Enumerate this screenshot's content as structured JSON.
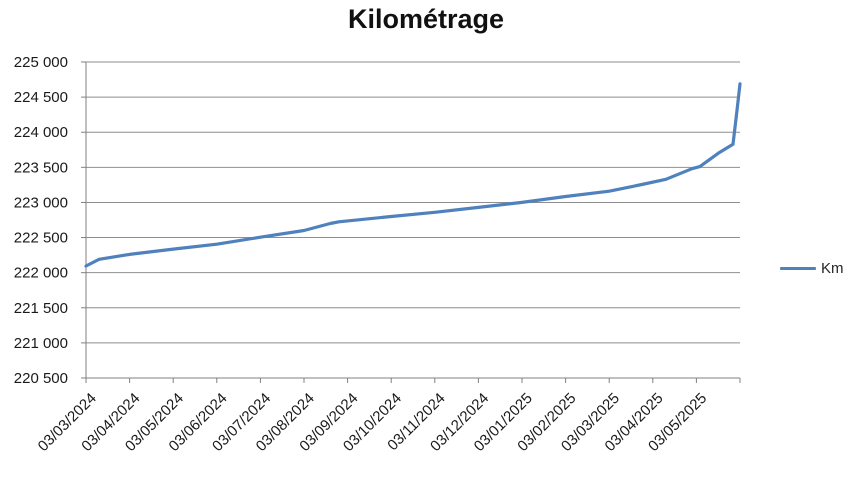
{
  "title": "Kilométrage",
  "legend": {
    "label": "Km",
    "line_color": "#4F81BD"
  },
  "colors": {
    "series_line": "#4F81BD",
    "gridline": "#8E8E8E",
    "axis_line": "#808080",
    "tick_text": "#1A1A1A",
    "background": "#FFFFFF"
  },
  "chart_data": {
    "type": "line",
    "title": "Kilométrage",
    "grid": true,
    "legend_position": "right",
    "y_axis": {
      "min": 220500,
      "max": 225000,
      "step": 500,
      "tick_labels": [
        "225 000",
        "224 500",
        "224 000",
        "223 500",
        "223 000",
        "222 500",
        "222 000",
        "221 500",
        "221 000",
        "220 500"
      ]
    },
    "x_axis": {
      "units_span": 15,
      "tick_label_rotation_deg": -45,
      "tick_labels": [
        "03/03/2024",
        "03/04/2024",
        "03/05/2024",
        "03/06/2024",
        "03/07/2024",
        "03/08/2024",
        "03/09/2024",
        "03/10/2024",
        "03/11/2024",
        "03/12/2024",
        "03/01/2025",
        "03/02/2025",
        "03/03/2025",
        "03/04/2025",
        "03/05/2025"
      ]
    },
    "categories": [
      "03/03/2024",
      "03/04/2024",
      "03/05/2024",
      "03/06/2024",
      "03/07/2024",
      "03/08/2024",
      "03/09/2024",
      "03/10/2024",
      "03/11/2024",
      "03/12/2024",
      "03/01/2025",
      "03/02/2025",
      "03/03/2025",
      "03/04/2025",
      "03/05/2025"
    ],
    "series": [
      {
        "name": "Km",
        "color": "#4F81BD",
        "values_at_labels": [
          222095,
          222260,
          222335,
          222405,
          222505,
          222600,
          222745,
          222800,
          222860,
          222930,
          223000,
          223085,
          223160,
          223290,
          223490
        ],
        "points": [
          [
            0.0,
            222095
          ],
          [
            0.3,
            222190
          ],
          [
            1,
            222260
          ],
          [
            2,
            222335
          ],
          [
            3,
            222405
          ],
          [
            4,
            222505
          ],
          [
            5,
            222600
          ],
          [
            5.6,
            222700
          ],
          [
            5.8,
            222725
          ],
          [
            7,
            222800
          ],
          [
            8,
            222860
          ],
          [
            9,
            222930
          ],
          [
            10,
            223000
          ],
          [
            11,
            223085
          ],
          [
            12,
            223160
          ],
          [
            12.75,
            223255
          ],
          [
            13.3,
            223330
          ],
          [
            13.9,
            223480
          ],
          [
            14.08,
            223510
          ],
          [
            14.5,
            223700
          ],
          [
            14.84,
            223830
          ],
          [
            14.93,
            224300
          ],
          [
            15,
            224690
          ]
        ]
      }
    ]
  }
}
